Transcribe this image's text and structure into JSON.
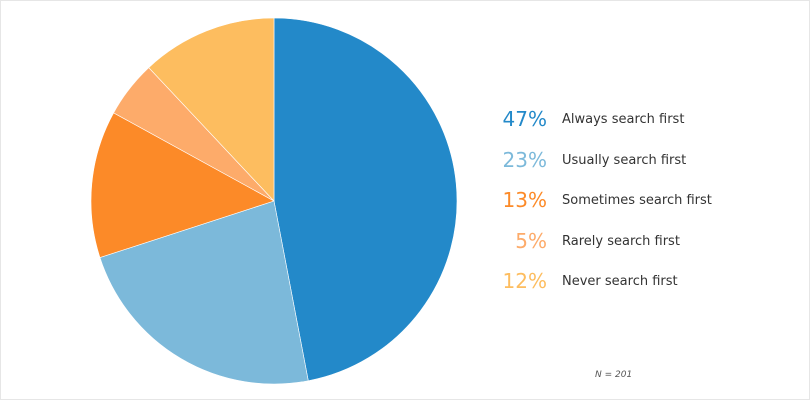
{
  "chart_data": {
    "type": "pie",
    "note": "N = 201",
    "legend_position": "right",
    "slices": [
      {
        "label": "Always search first",
        "percent_label": "47%",
        "value": 47,
        "color": "#2389c9"
      },
      {
        "label": "Usually search first",
        "percent_label": "23%",
        "value": 23,
        "color": "#7cb9da"
      },
      {
        "label": "Sometimes search first",
        "percent_label": "13%",
        "value": 13,
        "color": "#fc8a28"
      },
      {
        "label": "Rarely search first",
        "percent_label": "5%",
        "value": 5,
        "color": "#fdab6a"
      },
      {
        "label": "Never search first",
        "percent_label": "12%",
        "value": 12,
        "color": "#fdbd5f"
      }
    ]
  }
}
